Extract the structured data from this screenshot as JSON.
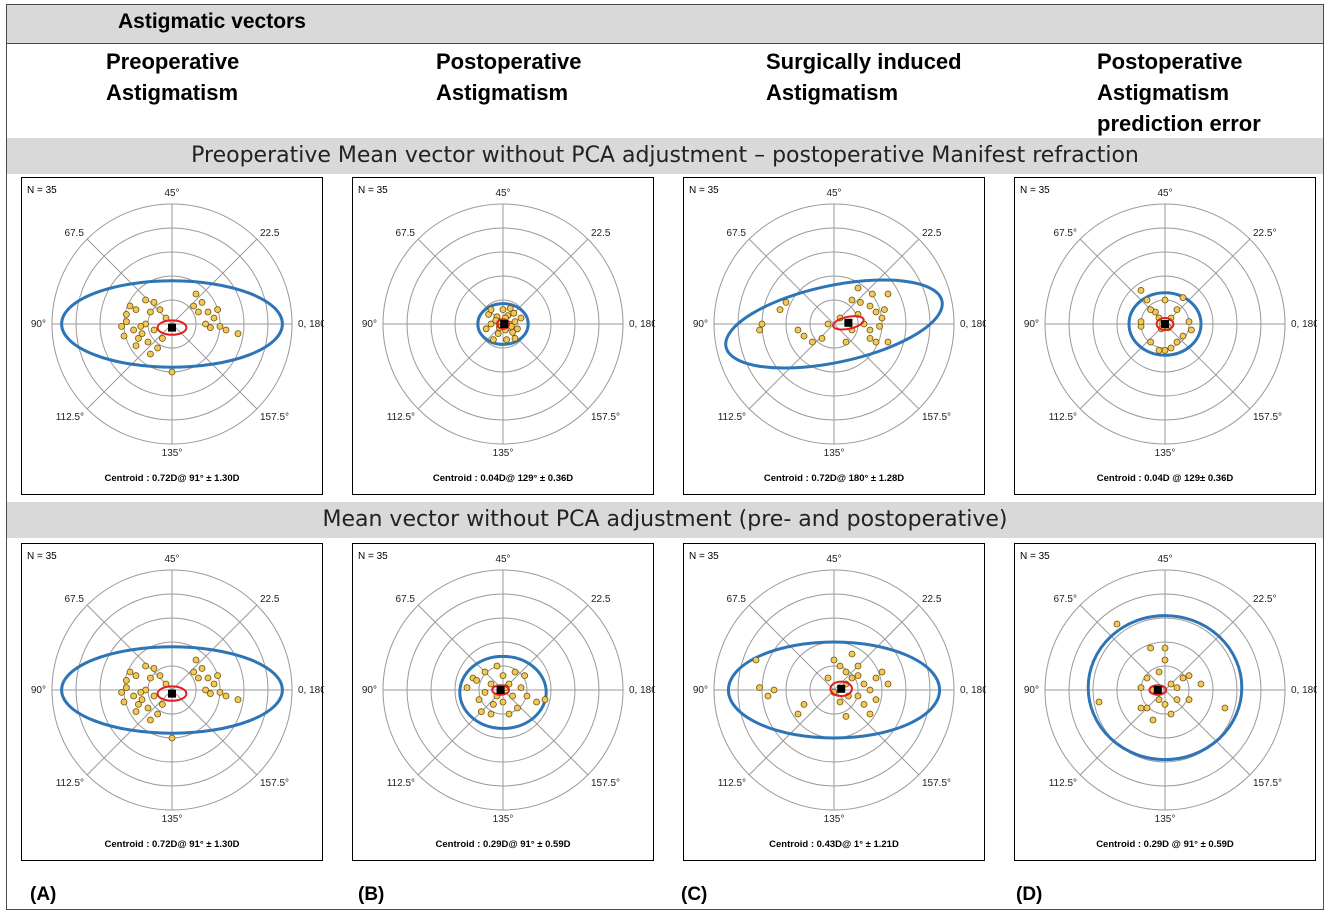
{
  "header": {
    "title": "Astigmatic vectors"
  },
  "columns": [
    {
      "line1": "Preoperative",
      "line2": "Astigmatism",
      "line3": ""
    },
    {
      "line1": "Postoperative",
      "line2": "Astigmatism",
      "line3": ""
    },
    {
      "line1": "Surgically induced",
      "line2": "Astigmatism",
      "line3": ""
    },
    {
      "line1": "Postoperative",
      "line2": "Astigmatism",
      "line3": "prediction error"
    }
  ],
  "rows": [
    {
      "title": "Preoperative Mean vector without PCA adjustment – postoperative Manifest refraction"
    },
    {
      "title": "Mean vector without PCA adjustment (pre- and postoperative)"
    }
  ],
  "panel_labels": [
    "(A)",
    "(B)",
    "(C)",
    "(D)"
  ],
  "colors": {
    "ellipse95": "#2e75b6",
    "ellipse_centroid": "#e02020",
    "point_fill": "#f2c85c",
    "point_stroke": "#6b5200",
    "centroid": "#000000",
    "grid": "#9a9a9a",
    "band": "#d9d9d9"
  },
  "chart_data": [
    {
      "type": "scatter",
      "panel": "row1-A",
      "n_label": "N = 35",
      "angle_labels": [
        "45°",
        "67.5",
        "22.5",
        "90°",
        "0, 180°",
        "112.5°",
        "157.5°",
        "135°"
      ],
      "centroid_text": "Centroid :  0.72D@  91°   ± 1.30D",
      "centroid_xy": [
        0.0,
        -0.03
      ],
      "ellipse_outer": {
        "cx": 0.0,
        "cy": 0.0,
        "rx": 0.92,
        "ry": 0.36,
        "rot": 0
      },
      "ellipse_inner": {
        "cx": 0.0,
        "cy": -0.03,
        "rx": 0.12,
        "ry": 0.06,
        "rot": 0
      },
      "points": [
        [
          -0.35,
          0.15
        ],
        [
          -0.3,
          0.12
        ],
        [
          -0.22,
          0.2
        ],
        [
          -0.18,
          0.1
        ],
        [
          -0.38,
          0.02
        ],
        [
          -0.32,
          -0.05
        ],
        [
          -0.25,
          -0.08
        ],
        [
          -0.15,
          -0.05
        ],
        [
          -0.28,
          -0.12
        ],
        [
          -0.2,
          -0.15
        ],
        [
          -0.12,
          -0.2
        ],
        [
          -0.05,
          0.05
        ],
        [
          -0.1,
          0.12
        ],
        [
          -0.4,
          -0.1
        ],
        [
          -0.18,
          -0.25
        ],
        [
          0.0,
          -0.4
        ],
        [
          0.2,
          0.25
        ],
        [
          0.25,
          0.18
        ],
        [
          0.3,
          0.1
        ],
        [
          0.35,
          0.05
        ],
        [
          0.4,
          -0.02
        ],
        [
          0.45,
          -0.05
        ],
        [
          0.55,
          -0.08
        ],
        [
          0.28,
          0.0
        ],
        [
          0.32,
          -0.03
        ],
        [
          0.22,
          0.1
        ],
        [
          -0.3,
          -0.18
        ],
        [
          -0.22,
          0.0
        ],
        [
          -0.38,
          0.08
        ],
        [
          -0.08,
          -0.12
        ],
        [
          0.18,
          0.15
        ],
        [
          0.38,
          0.12
        ],
        [
          -0.15,
          0.18
        ],
        [
          -0.26,
          -0.02
        ],
        [
          -0.42,
          -0.02
        ]
      ]
    },
    {
      "type": "scatter",
      "panel": "row1-B",
      "n_label": "N = 35",
      "angle_labels": [
        "45°",
        "67.5",
        "22.5",
        "90°",
        "0, 180°",
        "112.5°",
        "157.5°",
        "135°"
      ],
      "centroid_text": "Centroid : 0.04D@  129° ± 0.36D",
      "centroid_xy": [
        0.01,
        0.0
      ],
      "ellipse_outer": {
        "cx": 0.0,
        "cy": 0.0,
        "rx": 0.21,
        "ry": 0.17,
        "rot": 0
      },
      "ellipse_inner": {
        "cx": 0.0,
        "cy": 0.0,
        "rx": 0.05,
        "ry": 0.04,
        "rot": 0
      },
      "points": [
        [
          -0.05,
          0.06
        ],
        [
          0.04,
          0.07
        ],
        [
          0.1,
          0.02
        ],
        [
          -0.1,
          0.0
        ],
        [
          0.02,
          -0.05
        ],
        [
          -0.04,
          -0.08
        ],
        [
          0.08,
          -0.07
        ],
        [
          -0.12,
          0.08
        ],
        [
          0.12,
          -0.04
        ],
        [
          0.0,
          0.12
        ],
        [
          -0.08,
          -0.13
        ],
        [
          0.06,
          0.13
        ],
        [
          -0.14,
          -0.04
        ],
        [
          0.15,
          0.05
        ],
        [
          0.03,
          -0.13
        ],
        [
          -0.02,
          0.02
        ],
        [
          0.05,
          0.0
        ],
        [
          -0.06,
          0.03
        ],
        [
          0.09,
          0.09
        ],
        [
          -0.1,
          0.12
        ],
        [
          0.0,
          -0.02
        ],
        [
          0.1,
          -0.12
        ],
        [
          -0.03,
          -0.03
        ],
        [
          0.02,
          0.05
        ],
        [
          0.07,
          -0.02
        ]
      ]
    },
    {
      "type": "scatter",
      "panel": "row1-C",
      "n_label": "N = 35",
      "angle_labels": [
        "45°",
        "67.5",
        "22.5",
        "90°",
        "0, 180°",
        "112.5°",
        "157.5°",
        "135°"
      ],
      "centroid_text": "Centroid :  0.72D@  180° ± 1.28D",
      "centroid_xy": [
        0.12,
        0.01
      ],
      "ellipse_outer": {
        "cx": 0.0,
        "cy": 0.0,
        "rx": 0.92,
        "ry": 0.32,
        "rot": -12
      },
      "ellipse_inner": {
        "cx": 0.12,
        "cy": 0.01,
        "rx": 0.13,
        "ry": 0.05,
        "rot": -12
      },
      "points": [
        [
          -0.6,
          0.0
        ],
        [
          -0.62,
          -0.05
        ],
        [
          -0.4,
          0.18
        ],
        [
          -0.3,
          -0.05
        ],
        [
          -0.25,
          -0.1
        ],
        [
          -0.18,
          -0.15
        ],
        [
          -0.1,
          -0.12
        ],
        [
          0.15,
          0.2
        ],
        [
          0.22,
          0.18
        ],
        [
          0.3,
          0.15
        ],
        [
          0.35,
          0.1
        ],
        [
          0.4,
          0.05
        ],
        [
          0.38,
          -0.02
        ],
        [
          0.3,
          -0.05
        ],
        [
          0.25,
          0.0
        ],
        [
          0.2,
          0.08
        ],
        [
          0.32,
          0.25
        ],
        [
          0.42,
          0.12
        ],
        [
          0.3,
          -0.12
        ],
        [
          0.35,
          -0.15
        ],
        [
          0.45,
          -0.15
        ],
        [
          0.05,
          0.05
        ],
        [
          -0.05,
          0.0
        ],
        [
          0.15,
          -0.05
        ],
        [
          0.2,
          0.3
        ],
        [
          0.1,
          -0.15
        ],
        [
          -0.45,
          0.12
        ],
        [
          0.45,
          0.25
        ]
      ]
    },
    {
      "type": "scatter",
      "panel": "row1-D",
      "n_label": "N = 35",
      "angle_labels": [
        "45°",
        "67.5°",
        "22.5°",
        "90°",
        "0, 180°",
        "112.5°",
        "157.5°",
        "135°"
      ],
      "centroid_text": "Centroid : 0.04D @ 129± 0.36D",
      "centroid_xy": [
        0.0,
        0.0
      ],
      "ellipse_outer": {
        "cx": 0.0,
        "cy": 0.0,
        "rx": 0.3,
        "ry": 0.26,
        "rot": 0
      },
      "ellipse_inner": {
        "cx": 0.0,
        "cy": 0.0,
        "rx": 0.07,
        "ry": 0.05,
        "rot": 0
      },
      "points": [
        [
          -0.2,
          0.28
        ],
        [
          -0.15,
          0.2
        ],
        [
          -0.08,
          0.1
        ],
        [
          -0.2,
          -0.02
        ],
        [
          -0.2,
          0.02
        ],
        [
          0.2,
          0.02
        ],
        [
          0.22,
          -0.05
        ],
        [
          0.15,
          0.22
        ],
        [
          0.0,
          -0.22
        ],
        [
          -0.05,
          -0.22
        ],
        [
          0.05,
          -0.2
        ],
        [
          0.1,
          -0.15
        ],
        [
          -0.12,
          -0.15
        ],
        [
          0.15,
          -0.1
        ],
        [
          0.0,
          0.2
        ],
        [
          -0.05,
          0.05
        ],
        [
          0.05,
          0.05
        ],
        [
          0.03,
          -0.03
        ],
        [
          -0.03,
          -0.04
        ],
        [
          0.1,
          0.12
        ],
        [
          -0.12,
          0.12
        ],
        [
          -0.02,
          0.0
        ]
      ]
    },
    {
      "type": "scatter",
      "panel": "row2-A",
      "n_label": "N = 35",
      "angle_labels": [
        "45°",
        "67.5",
        "22.5",
        "90°",
        "0, 180°",
        "112.5°",
        "157.5°",
        "135°"
      ],
      "centroid_text": "Centroid :  0.72D@  91°   ± 1.30D",
      "centroid_xy": [
        0.0,
        -0.03
      ],
      "ellipse_outer": {
        "cx": 0.0,
        "cy": 0.0,
        "rx": 0.92,
        "ry": 0.36,
        "rot": 0
      },
      "ellipse_inner": {
        "cx": 0.0,
        "cy": -0.03,
        "rx": 0.12,
        "ry": 0.06,
        "rot": 0
      },
      "points": [
        [
          -0.35,
          0.15
        ],
        [
          -0.3,
          0.12
        ],
        [
          -0.22,
          0.2
        ],
        [
          -0.18,
          0.1
        ],
        [
          -0.38,
          0.02
        ],
        [
          -0.32,
          -0.05
        ],
        [
          -0.25,
          -0.08
        ],
        [
          -0.15,
          -0.05
        ],
        [
          -0.28,
          -0.12
        ],
        [
          -0.2,
          -0.15
        ],
        [
          -0.12,
          -0.2
        ],
        [
          -0.05,
          0.05
        ],
        [
          -0.1,
          0.12
        ],
        [
          -0.4,
          -0.1
        ],
        [
          -0.18,
          -0.25
        ],
        [
          0.0,
          -0.4
        ],
        [
          0.2,
          0.25
        ],
        [
          0.25,
          0.18
        ],
        [
          0.3,
          0.1
        ],
        [
          0.35,
          0.05
        ],
        [
          0.4,
          -0.02
        ],
        [
          0.45,
          -0.05
        ],
        [
          0.55,
          -0.08
        ],
        [
          0.28,
          0.0
        ],
        [
          0.32,
          -0.03
        ],
        [
          0.22,
          0.1
        ],
        [
          -0.3,
          -0.18
        ],
        [
          -0.22,
          0.0
        ],
        [
          -0.38,
          0.08
        ],
        [
          -0.08,
          -0.12
        ],
        [
          0.18,
          0.15
        ],
        [
          0.38,
          0.12
        ],
        [
          -0.15,
          0.18
        ],
        [
          -0.26,
          -0.02
        ],
        [
          -0.42,
          -0.02
        ]
      ]
    },
    {
      "type": "scatter",
      "panel": "row2-B",
      "n_label": "N = 35",
      "angle_labels": [
        "45°",
        "67.5",
        "22.5",
        "90°",
        "0, 180°",
        "112.5°",
        "157.5°",
        "135°"
      ],
      "centroid_text": "Centroid : 0.29D@  91°  ± 0.59D",
      "centroid_xy": [
        -0.02,
        0.0
      ],
      "ellipse_outer": {
        "cx": 0.0,
        "cy": -0.02,
        "rx": 0.36,
        "ry": 0.3,
        "rot": 0
      },
      "ellipse_inner": {
        "cx": -0.02,
        "cy": 0.0,
        "rx": 0.07,
        "ry": 0.04,
        "rot": 0
      },
      "points": [
        [
          -0.3,
          0.02
        ],
        [
          -0.25,
          0.1
        ],
        [
          -0.2,
          -0.08
        ],
        [
          -0.15,
          0.15
        ],
        [
          -0.1,
          0.05
        ],
        [
          -0.05,
          0.2
        ],
        [
          0.0,
          0.12
        ],
        [
          0.05,
          0.05
        ],
        [
          0.1,
          0.15
        ],
        [
          0.15,
          0.02
        ],
        [
          0.2,
          -0.05
        ],
        [
          0.28,
          -0.1
        ],
        [
          0.35,
          -0.08
        ],
        [
          0.12,
          -0.15
        ],
        [
          0.0,
          -0.1
        ],
        [
          -0.08,
          -0.12
        ],
        [
          -0.18,
          -0.18
        ],
        [
          -0.1,
          -0.2
        ],
        [
          0.05,
          -0.2
        ],
        [
          -0.22,
          0.08
        ],
        [
          0.18,
          0.12
        ],
        [
          -0.05,
          -0.05
        ],
        [
          0.08,
          -0.05
        ],
        [
          -0.15,
          -0.02
        ],
        [
          0.02,
          0.02
        ]
      ]
    },
    {
      "type": "scatter",
      "panel": "row2-C",
      "n_label": "N = 35",
      "angle_labels": [
        "45°",
        "67.5",
        "22.5",
        "90°",
        "0, 180°",
        "112.5°",
        "157.5°",
        "135°"
      ],
      "centroid_text": "Centroid :  0.43D@  1°    ± 1.21D",
      "centroid_xy": [
        0.06,
        0.01
      ],
      "ellipse_outer": {
        "cx": 0.0,
        "cy": 0.0,
        "rx": 0.88,
        "ry": 0.4,
        "rot": 0
      },
      "ellipse_inner": {
        "cx": 0.06,
        "cy": 0.01,
        "rx": 0.09,
        "ry": 0.06,
        "rot": 0
      },
      "points": [
        [
          -0.65,
          0.25
        ],
        [
          -0.62,
          0.02
        ],
        [
          -0.55,
          -0.05
        ],
        [
          -0.5,
          0.0
        ],
        [
          -0.3,
          -0.2
        ],
        [
          -0.25,
          -0.12
        ],
        [
          0.0,
          0.25
        ],
        [
          0.05,
          0.2
        ],
        [
          0.1,
          0.15
        ],
        [
          0.15,
          0.1
        ],
        [
          0.2,
          0.12
        ],
        [
          0.25,
          0.05
        ],
        [
          0.3,
          0.0
        ],
        [
          0.35,
          0.1
        ],
        [
          0.4,
          0.15
        ],
        [
          0.45,
          0.05
        ],
        [
          0.2,
          -0.05
        ],
        [
          0.25,
          -0.12
        ],
        [
          0.3,
          -0.2
        ],
        [
          0.1,
          -0.22
        ],
        [
          0.05,
          -0.1
        ],
        [
          0.0,
          -0.02
        ],
        [
          0.15,
          0.3
        ],
        [
          0.2,
          0.2
        ],
        [
          -0.05,
          0.1
        ],
        [
          0.35,
          -0.08
        ],
        [
          0.1,
          0.05
        ],
        [
          0.12,
          -0.05
        ]
      ]
    },
    {
      "type": "scatter",
      "panel": "row2-D",
      "n_label": "N = 35",
      "angle_labels": [
        "45°",
        "67.5°",
        "22.5°",
        "90°",
        "0, 180°",
        "112.5°",
        "157.5°",
        "135°"
      ],
      "centroid_text": "Centroid : 0.29D @ 91° ± 0.59D",
      "centroid_xy": [
        -0.06,
        0.0
      ],
      "ellipse_outer": {
        "cx": 0.0,
        "cy": 0.02,
        "rx": 0.64,
        "ry": 0.6,
        "rot": 0
      },
      "ellipse_inner": {
        "cx": -0.06,
        "cy": 0.0,
        "rx": 0.07,
        "ry": 0.04,
        "rot": 0
      },
      "points": [
        [
          -0.4,
          0.55
        ],
        [
          -0.12,
          0.35
        ],
        [
          0.0,
          0.25
        ],
        [
          -0.05,
          0.15
        ],
        [
          -0.15,
          0.1
        ],
        [
          -0.2,
          0.02
        ],
        [
          -0.1,
          0.0
        ],
        [
          0.05,
          0.05
        ],
        [
          0.1,
          0.02
        ],
        [
          0.15,
          0.1
        ],
        [
          0.2,
          0.12
        ],
        [
          -0.05,
          -0.08
        ],
        [
          0.0,
          -0.12
        ],
        [
          -0.15,
          -0.15
        ],
        [
          -0.2,
          -0.15
        ],
        [
          0.1,
          -0.08
        ],
        [
          0.2,
          -0.08
        ],
        [
          0.3,
          0.05
        ],
        [
          0.5,
          -0.15
        ],
        [
          -0.55,
          -0.1
        ],
        [
          -0.1,
          -0.25
        ],
        [
          0.05,
          -0.2
        ],
        [
          0.0,
          0.35
        ]
      ]
    }
  ]
}
